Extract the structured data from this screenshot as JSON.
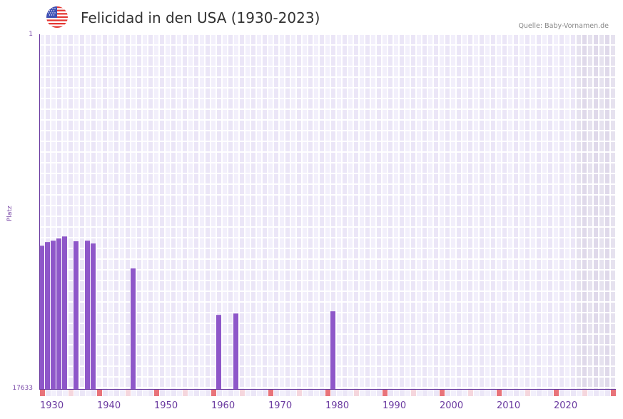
{
  "header": {
    "title": "Felicidad in den USA (1930-2023)",
    "source": "Quelle: Baby-Vornamen.de",
    "flag_icon": "us-flag-icon"
  },
  "colors": {
    "bar": "#8e57c9",
    "axis": "#6b3aa0",
    "grid_cell_a": "#f2effb",
    "grid_cell_b": "#ebe6f7",
    "future_cell_a": "#e6e2ef",
    "future_cell_b": "#dfd9ea",
    "decade_marker": "#e8737a",
    "half_decade_marker": "#f5d6dd"
  },
  "chart_data": {
    "type": "bar",
    "title": "Felicidad in den USA (1930-2023)",
    "xlabel": "",
    "ylabel": "Platz",
    "y_inverted": true,
    "ylim": [
      1,
      17633
    ],
    "xlim": [
      1930,
      2030
    ],
    "y_tick_labels": [
      "1",
      "17633"
    ],
    "x_tick_labels": [
      "1930",
      "1940",
      "1950",
      "1960",
      "1970",
      "1980",
      "1990",
      "2000",
      "2010",
      "2020"
    ],
    "grid": true,
    "legend": null,
    "shaded_future_from": 2024,
    "categories": [
      1930,
      1931,
      1932,
      1933,
      1934,
      1936,
      1938,
      1939,
      1946,
      1961,
      1964,
      1981
    ],
    "values": [
      10510,
      10330,
      10260,
      10150,
      10050,
      10290,
      10260,
      10400,
      11640,
      13950,
      13880,
      13770
    ]
  },
  "axis": {
    "y_top_label": "1",
    "y_bottom_label": "17633",
    "y_title": "Platz"
  }
}
